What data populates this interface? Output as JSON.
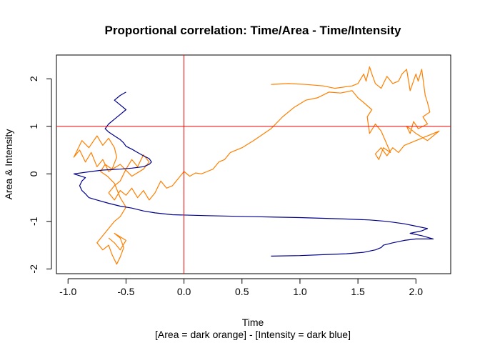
{
  "chart_data": {
    "type": "line",
    "title": "Proportional correlation: Time/Area - Time/Intensity",
    "xlabel": "Time",
    "xlabel_sub": "[Area = dark orange] - [Intensity = dark blue]",
    "ylabel": "Area & Intensity",
    "xlim": [
      -1.1,
      2.3
    ],
    "ylim": [
      -2.1,
      2.5
    ],
    "x_ticks": [
      "-1.0",
      "-0.5",
      "0.0",
      "0.5",
      "1.0",
      "1.5",
      "2.0"
    ],
    "y_ticks": [
      "-2",
      "-1",
      "0",
      "1",
      "2"
    ],
    "reference_lines": [
      {
        "orientation": "vertical",
        "value": 0,
        "color": "#ff0000"
      },
      {
        "orientation": "horizontal",
        "value": 1,
        "color": "#ff0000"
      }
    ],
    "series": [
      {
        "color": "#ff7f00",
        "points": [
          [
            0.75,
            1.88
          ],
          [
            0.9,
            1.9
          ],
          [
            1.05,
            1.88
          ],
          [
            1.2,
            1.85
          ],
          [
            1.3,
            1.8
          ],
          [
            1.45,
            1.85
          ],
          [
            1.5,
            1.9
          ],
          [
            1.55,
            2.1
          ],
          [
            1.57,
            1.95
          ],
          [
            1.6,
            2.25
          ],
          [
            1.62,
            2.1
          ],
          [
            1.65,
            1.9
          ],
          [
            1.7,
            1.8
          ],
          [
            1.75,
            2.05
          ],
          [
            1.8,
            1.9
          ],
          [
            1.85,
            1.95
          ],
          [
            1.88,
            2.1
          ],
          [
            1.92,
            2.2
          ],
          [
            1.95,
            1.75
          ],
          [
            2.0,
            2.1
          ],
          [
            2.02,
            1.95
          ],
          [
            2.05,
            2.2
          ],
          [
            2.08,
            1.65
          ],
          [
            2.1,
            1.5
          ],
          [
            2.12,
            1.3
          ],
          [
            2.06,
            1.2
          ],
          [
            2.1,
            1.05
          ],
          [
            2.02,
            0.95
          ],
          [
            1.98,
            1.1
          ],
          [
            1.95,
            0.85
          ],
          [
            1.92,
            1.0
          ],
          [
            1.95,
            0.95
          ],
          [
            2.0,
            0.85
          ],
          [
            2.1,
            0.7
          ],
          [
            2.2,
            0.9
          ],
          [
            2.05,
            0.75
          ],
          [
            1.9,
            0.6
          ],
          [
            1.85,
            0.45
          ],
          [
            1.8,
            0.55
          ],
          [
            1.75,
            0.38
          ],
          [
            1.7,
            0.55
          ],
          [
            1.65,
            0.42
          ],
          [
            1.68,
            0.3
          ],
          [
            1.72,
            0.55
          ],
          [
            1.78,
            0.45
          ],
          [
            1.7,
            0.9
          ],
          [
            1.65,
            1.05
          ],
          [
            1.6,
            0.85
          ],
          [
            1.58,
            1.2
          ],
          [
            1.62,
            1.35
          ],
          [
            1.55,
            1.5
          ],
          [
            1.5,
            1.6
          ],
          [
            1.45,
            1.75
          ],
          [
            1.35,
            1.7
          ],
          [
            1.25,
            1.72
          ],
          [
            1.15,
            1.6
          ],
          [
            1.05,
            1.55
          ],
          [
            0.95,
            1.4
          ],
          [
            0.85,
            1.2
          ],
          [
            0.75,
            0.95
          ],
          [
            0.6,
            0.7
          ],
          [
            0.5,
            0.55
          ],
          [
            0.4,
            0.45
          ],
          [
            0.35,
            0.3
          ],
          [
            0.3,
            0.25
          ],
          [
            0.25,
            0.1
          ],
          [
            0.2,
            0.05
          ],
          [
            0.15,
            0.0
          ],
          [
            0.1,
            0.02
          ],
          [
            0.05,
            -0.05
          ],
          [
            0.0,
            0.05
          ],
          [
            -0.05,
            -0.1
          ],
          [
            -0.1,
            -0.25
          ],
          [
            -0.15,
            -0.3
          ],
          [
            -0.2,
            -0.15
          ],
          [
            -0.25,
            -0.4
          ],
          [
            -0.3,
            -0.55
          ],
          [
            -0.35,
            -0.35
          ],
          [
            -0.4,
            -0.5
          ],
          [
            -0.45,
            -0.3
          ],
          [
            -0.5,
            -0.45
          ],
          [
            -0.55,
            -0.35
          ],
          [
            -0.6,
            -0.55
          ],
          [
            -0.65,
            -0.4
          ],
          [
            -0.6,
            -0.25
          ],
          [
            -0.55,
            -0.15
          ],
          [
            -0.5,
            0.1
          ],
          [
            -0.45,
            0.3
          ],
          [
            -0.4,
            0.15
          ],
          [
            -0.35,
            0.4
          ],
          [
            -0.3,
            0.25
          ],
          [
            -0.35,
            0.1
          ],
          [
            -0.45,
            -0.05
          ],
          [
            -0.55,
            0.2
          ],
          [
            -0.65,
            0.05
          ],
          [
            -0.7,
            0.3
          ],
          [
            -0.75,
            0.15
          ],
          [
            -0.8,
            0.45
          ],
          [
            -0.85,
            0.25
          ],
          [
            -0.9,
            0.5
          ],
          [
            -0.95,
            0.35
          ],
          [
            -0.88,
            0.7
          ],
          [
            -0.82,
            0.55
          ],
          [
            -0.75,
            0.8
          ],
          [
            -0.7,
            0.6
          ],
          [
            -0.65,
            0.75
          ],
          [
            -0.6,
            0.55
          ],
          [
            -0.58,
            0.35
          ],
          [
            -0.62,
            0.1
          ],
          [
            -0.68,
            0.2
          ],
          [
            -0.72,
            0.05
          ],
          [
            -0.66,
            -0.05
          ],
          [
            -0.6,
            -0.2
          ],
          [
            -0.55,
            -0.5
          ],
          [
            -0.5,
            -0.7
          ],
          [
            -0.55,
            -0.9
          ],
          [
            -0.6,
            -1.0
          ],
          [
            -0.65,
            -1.15
          ],
          [
            -0.7,
            -1.3
          ],
          [
            -0.75,
            -1.45
          ],
          [
            -0.7,
            -1.6
          ],
          [
            -0.65,
            -1.5
          ],
          [
            -0.62,
            -1.7
          ],
          [
            -0.58,
            -1.9
          ],
          [
            -0.55,
            -1.75
          ],
          [
            -0.52,
            -1.55
          ],
          [
            -0.55,
            -1.35
          ],
          [
            -0.6,
            -1.25
          ],
          [
            -0.5,
            -1.4
          ],
          [
            -0.55,
            -1.6
          ],
          [
            -0.6,
            -1.45
          ],
          [
            -0.65,
            -1.35
          ]
        ]
      },
      {
        "color": "#00008b",
        "points": [
          [
            0.75,
            -1.73
          ],
          [
            1.0,
            -1.72
          ],
          [
            1.2,
            -1.7
          ],
          [
            1.4,
            -1.68
          ],
          [
            1.55,
            -1.65
          ],
          [
            1.65,
            -1.6
          ],
          [
            1.7,
            -1.55
          ],
          [
            1.72,
            -1.5
          ],
          [
            1.8,
            -1.45
          ],
          [
            1.9,
            -1.4
          ],
          [
            2.0,
            -1.37
          ],
          [
            2.15,
            -1.37
          ],
          [
            2.05,
            -1.3
          ],
          [
            1.95,
            -1.25
          ],
          [
            2.05,
            -1.2
          ],
          [
            2.1,
            -1.15
          ],
          [
            2.0,
            -1.1
          ],
          [
            1.9,
            -1.05
          ],
          [
            1.75,
            -1.0
          ],
          [
            1.6,
            -0.97
          ],
          [
            1.4,
            -0.95
          ],
          [
            1.0,
            -0.92
          ],
          [
            0.6,
            -0.9
          ],
          [
            0.2,
            -0.88
          ],
          [
            -0.1,
            -0.86
          ],
          [
            -0.25,
            -0.82
          ],
          [
            -0.35,
            -0.78
          ],
          [
            -0.45,
            -0.72
          ],
          [
            -0.55,
            -0.68
          ],
          [
            -0.65,
            -0.62
          ],
          [
            -0.75,
            -0.55
          ],
          [
            -0.82,
            -0.5
          ],
          [
            -0.85,
            -0.42
          ],
          [
            -0.88,
            -0.35
          ],
          [
            -0.9,
            -0.25
          ],
          [
            -0.88,
            -0.15
          ],
          [
            -0.85,
            -0.08
          ],
          [
            -0.95,
            0.0
          ],
          [
            -0.8,
            0.05
          ],
          [
            -0.7,
            0.08
          ],
          [
            -0.55,
            0.1
          ],
          [
            -0.45,
            0.12
          ],
          [
            -0.35,
            0.15
          ],
          [
            -0.3,
            0.2
          ],
          [
            -0.28,
            0.25
          ],
          [
            -0.3,
            0.32
          ],
          [
            -0.35,
            0.38
          ],
          [
            -0.4,
            0.45
          ],
          [
            -0.45,
            0.52
          ],
          [
            -0.5,
            0.58
          ],
          [
            -0.52,
            0.65
          ],
          [
            -0.55,
            0.72
          ],
          [
            -0.6,
            0.8
          ],
          [
            -0.65,
            0.88
          ],
          [
            -0.68,
            0.95
          ],
          [
            -0.65,
            1.05
          ],
          [
            -0.6,
            1.15
          ],
          [
            -0.55,
            1.25
          ],
          [
            -0.5,
            1.35
          ],
          [
            -0.55,
            1.45
          ],
          [
            -0.6,
            1.55
          ],
          [
            -0.55,
            1.65
          ],
          [
            -0.5,
            1.72
          ]
        ]
      }
    ]
  }
}
